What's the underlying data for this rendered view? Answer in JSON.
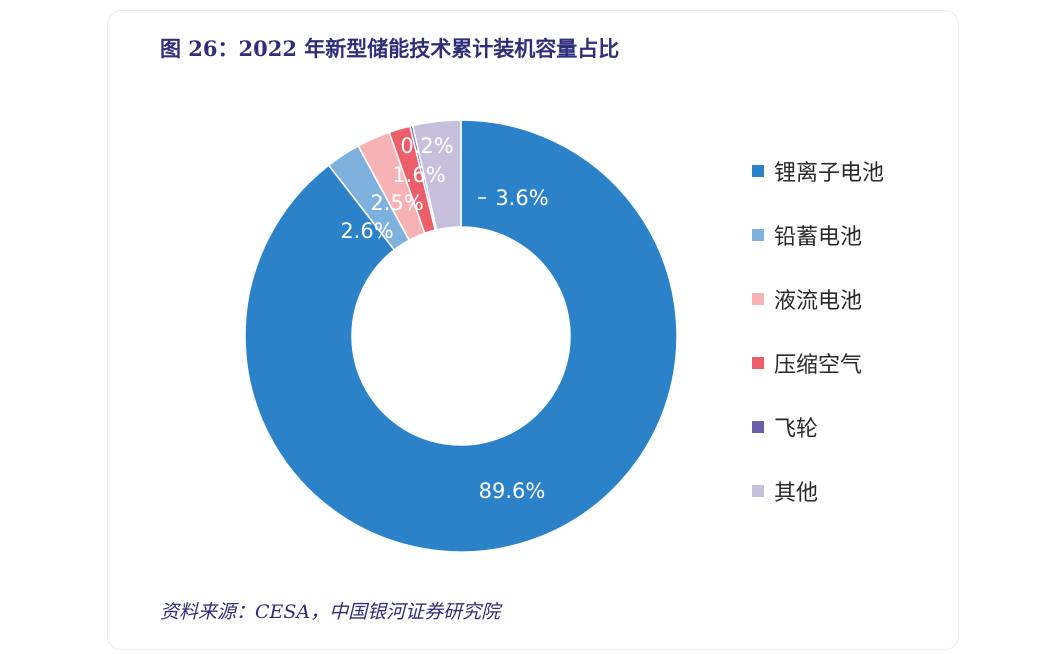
{
  "chart_data": {
    "type": "pie",
    "title": "图 26：2022 年新型储能技术累计装机容量占比",
    "categories": [
      "锂离子电池",
      "铅蓄电池",
      "液流电池",
      "压缩空气",
      "飞轮",
      "其他"
    ],
    "values": [
      89.6,
      2.6,
      2.5,
      1.6,
      0.2,
      3.6
    ],
    "value_labels": [
      "89.6%",
      "2.6%",
      "2.5%",
      "1.6%",
      "0.2%",
      "3.6%"
    ],
    "colors": [
      "#2b82c9",
      "#7fb1de",
      "#f7b2b5",
      "#ec5f6a",
      "#6b5fa8",
      "#c7c0dd"
    ],
    "donut": true,
    "legend_position": "right",
    "source": "资料来源：CESA，中国银河证券研究院"
  }
}
